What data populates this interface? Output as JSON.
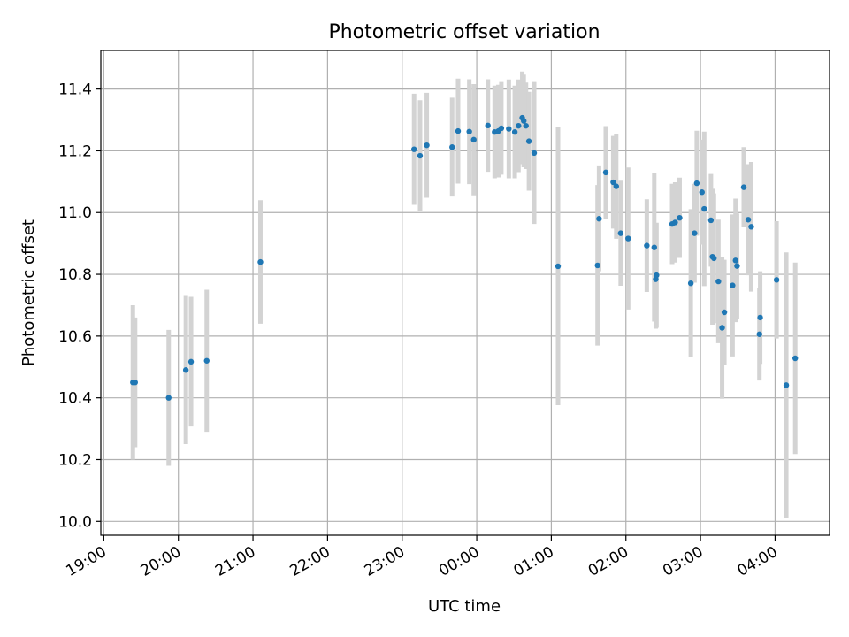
{
  "chart_data": {
    "type": "scatter",
    "title": "Photometric offset variation",
    "xlabel": "UTC time",
    "ylabel": "Photometric offset",
    "x_unit": "hours after 19:00 UTC",
    "xlim": [
      -0.04,
      9.73
    ],
    "ylim": [
      9.955,
      11.525
    ],
    "grid": true,
    "x_tick_labels": [
      "19:00",
      "20:00",
      "21:00",
      "22:00",
      "23:00",
      "00:00",
      "01:00",
      "02:00",
      "03:00",
      "04:00"
    ],
    "y_tick_labels": [
      "10.0",
      "10.2",
      "10.4",
      "10.6",
      "10.8",
      "11.0",
      "11.2",
      "11.4"
    ],
    "y_tick_values": [
      10.0,
      10.2,
      10.4,
      10.6,
      10.8,
      11.0,
      11.2,
      11.4
    ],
    "marker_color": "#1f77b4",
    "errorbar_color": "#d3d3d3",
    "series": [
      {
        "name": "offset",
        "x": [
          0.39,
          0.42,
          0.87,
          1.1,
          1.17,
          1.38,
          2.1,
          4.16,
          4.24,
          4.33,
          4.67,
          4.75,
          4.9,
          4.96,
          5.15,
          5.24,
          5.29,
          5.33,
          5.43,
          5.51,
          5.56,
          5.61,
          5.63,
          5.66,
          5.7,
          5.77,
          6.09,
          6.62,
          6.64,
          6.73,
          6.83,
          6.87,
          6.93,
          7.03,
          7.28,
          7.38,
          7.4,
          7.41,
          7.62,
          7.66,
          7.72,
          7.87,
          7.92,
          7.95,
          8.02,
          8.05,
          8.14,
          8.16,
          8.18,
          8.24,
          8.29,
          8.32,
          8.43,
          8.47,
          8.49,
          8.58,
          8.64,
          8.68,
          8.79,
          8.8,
          9.02,
          9.15,
          9.27
        ],
        "y": [
          10.45,
          10.45,
          10.4,
          10.49,
          10.517,
          10.52,
          10.84,
          11.205,
          11.184,
          11.218,
          11.212,
          11.264,
          11.262,
          11.236,
          11.282,
          11.261,
          11.264,
          11.273,
          11.271,
          11.261,
          11.281,
          11.307,
          11.297,
          11.281,
          11.231,
          11.193,
          10.826,
          10.829,
          10.98,
          11.13,
          11.098,
          11.085,
          10.933,
          10.916,
          10.893,
          10.887,
          10.784,
          10.797,
          10.963,
          10.968,
          10.983,
          10.771,
          10.933,
          11.095,
          11.066,
          11.012,
          10.975,
          10.857,
          10.852,
          10.777,
          10.627,
          10.677,
          10.764,
          10.845,
          10.827,
          11.082,
          10.977,
          10.954,
          10.606,
          10.66,
          10.782,
          10.441,
          10.528
        ],
        "err": [
          0.25,
          0.21,
          0.22,
          0.24,
          0.21,
          0.23,
          0.2,
          0.18,
          0.18,
          0.17,
          0.16,
          0.17,
          0.17,
          0.18,
          0.15,
          0.15,
          0.15,
          0.15,
          0.16,
          0.15,
          0.15,
          0.15,
          0.15,
          0.14,
          0.16,
          0.23,
          0.45,
          0.26,
          0.17,
          0.15,
          0.15,
          0.17,
          0.17,
          0.23,
          0.15,
          0.24,
          0.16,
          0.17,
          0.13,
          0.13,
          0.13,
          0.24,
          0.16,
          0.17,
          0.17,
          0.25,
          0.15,
          0.22,
          0.21,
          0.2,
          0.23,
          0.17,
          0.23,
          0.2,
          0.17,
          0.13,
          0.18,
          0.21,
          0.15,
          0.15,
          0.19,
          0.43,
          0.31
        ]
      }
    ]
  }
}
